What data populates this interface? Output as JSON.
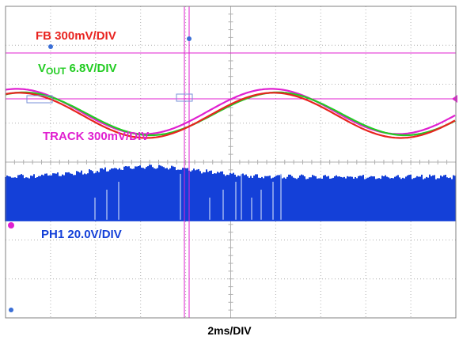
{
  "chart_data": {
    "type": "line",
    "title": "",
    "xlabel": "2ms/DIV",
    "ylabel": "",
    "time_per_div_ms": 2,
    "grid": true,
    "series": [
      {
        "name": "FB",
        "scale": "300mV/DIV",
        "color": "#e8231f",
        "sine": {
          "period_ms": 11.3,
          "peak_time_ms": 6.25,
          "center_div": -1.2,
          "amplitude_div": 0.58
        }
      },
      {
        "name": "VOUT",
        "scale": "6.8V/DIV",
        "color": "#22cc22",
        "sine": {
          "period_ms": 11.3,
          "peak_time_ms": 6.45,
          "center_div": -1.24,
          "amplitude_div": 0.55
        }
      },
      {
        "name": "TRACK",
        "scale": "300mV/DIV",
        "color": "#e020d0",
        "sine": {
          "period_ms": 11.3,
          "peak_time_ms": 6.15,
          "center_div": -1.3,
          "amplitude_div": 0.58
        }
      },
      {
        "name": "PH1",
        "scale": "20.0V/DIV",
        "color": "#1440d8",
        "band": {
          "low_div": 1.52,
          "high_div_min": 0.38,
          "high_div_max": 0.12,
          "peak_time_ms": 6.3
        }
      }
    ]
  },
  "labels": {
    "fb": "FB 300mV/DIV",
    "vout_v": "V",
    "vout_sub": "OUT",
    "vout_rest": " 6.8V/DIV",
    "track": "TRACK 300mV/DIV",
    "ph1": "PH1 20.0V/DIV",
    "xlabel": "2ms/DIV"
  },
  "colors": {
    "background": "#ffffff",
    "grid": "#b0b0b0",
    "frame": "#808080",
    "fb": "#e8231f",
    "vout": "#22cc22",
    "track": "#e020d0",
    "ph1": "#1440d8",
    "cursor": "#e020d0"
  }
}
